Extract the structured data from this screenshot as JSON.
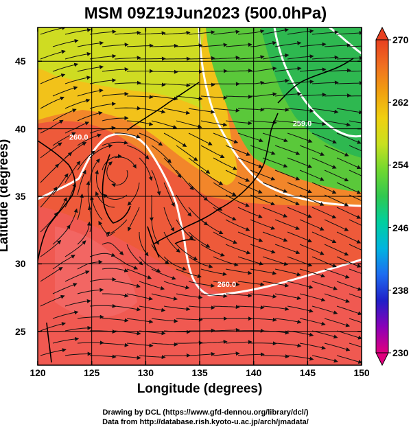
{
  "figure": {
    "title": "MSM 09Z19Jun2023 (500.0hPa)",
    "xlabel": "Longitude (degrees)",
    "ylabel": "Latitude  (degrees)",
    "credit_drawing": "Drawing by DCL (https://www.gfd-dennou.org/library/dcl/)",
    "credit_data": "Data from http://database.rish.kyoto-u.ac.jp/arch/jmadata/"
  },
  "chart_data": {
    "type": "heatmap",
    "map_region": "Japan and surrounding seas",
    "x_range": [
      120,
      150
    ],
    "y_range": [
      22.5,
      47.5
    ],
    "x_ticks": [
      "120",
      "125",
      "130",
      "135",
      "140",
      "145",
      "150"
    ],
    "y_ticks": [
      "25",
      "30",
      "35",
      "40",
      "45"
    ],
    "grid": true,
    "field": "temperature (K), shaded",
    "overlay": "wind streamlines with arrows",
    "colorbar": {
      "min": 230,
      "max": 270,
      "tick_labels": [
        "270",
        "262",
        "254",
        "246",
        "238",
        "230"
      ],
      "colors": [
        "#e0007e",
        "#8a00b8",
        "#2020c8",
        "#1e6cf0",
        "#00b4e0",
        "#00cfa0",
        "#30c850",
        "#70d830",
        "#c8e020",
        "#f0d010",
        "#f0a010",
        "#f07020",
        "#e84020"
      ]
    },
    "contours": [
      {
        "label": "260.0",
        "lon": 123.8,
        "lat": 39.2
      },
      {
        "label": "259.0",
        "lon": 144.5,
        "lat": 40.2
      },
      {
        "label": "260.0",
        "lon": 137.5,
        "lat": 28.3
      }
    ]
  }
}
